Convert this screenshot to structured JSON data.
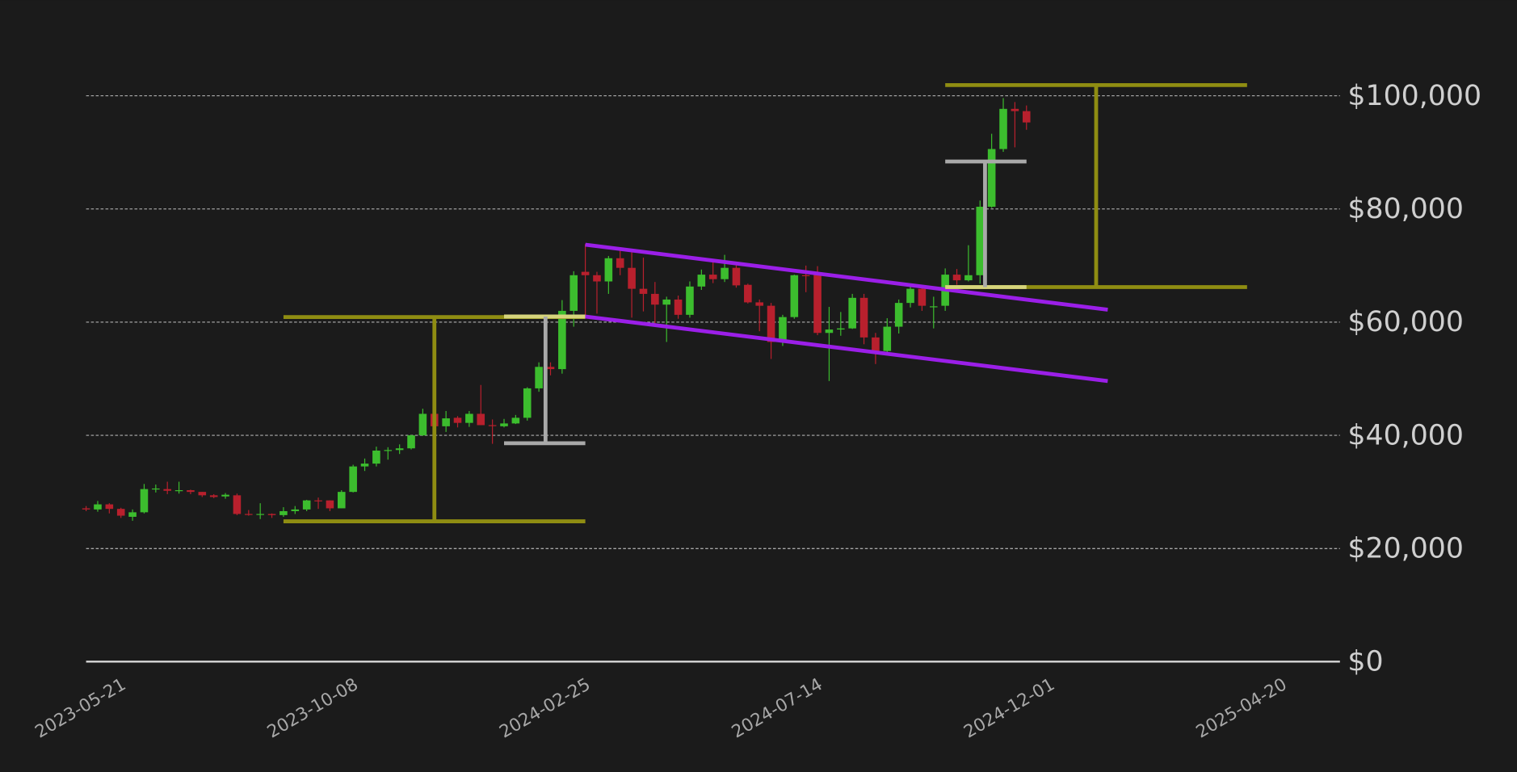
{
  "chart_data": {
    "type": "candlestick",
    "x": [
      "2023-04-30",
      "2023-05-07",
      "2023-05-14",
      "2023-05-21",
      "2023-05-28",
      "2023-06-04",
      "2023-06-11",
      "2023-06-18",
      "2023-06-25",
      "2023-07-02",
      "2023-07-09",
      "2023-07-16",
      "2023-07-23",
      "2023-07-30",
      "2023-08-06",
      "2023-08-13",
      "2023-08-20",
      "2023-08-27",
      "2023-09-03",
      "2023-09-10",
      "2023-09-17",
      "2023-09-24",
      "2023-10-01",
      "2023-10-08",
      "2023-10-15",
      "2023-10-22",
      "2023-10-29",
      "2023-11-05",
      "2023-11-12",
      "2023-11-19",
      "2023-11-26",
      "2023-12-03",
      "2023-12-10",
      "2023-12-17",
      "2023-12-24",
      "2023-12-31",
      "2024-01-07",
      "2024-01-14",
      "2024-01-21",
      "2024-01-28",
      "2024-02-04",
      "2024-02-11",
      "2024-02-18",
      "2024-02-25",
      "2024-03-03",
      "2024-03-10",
      "2024-03-17",
      "2024-03-24",
      "2024-03-31",
      "2024-04-07",
      "2024-04-14",
      "2024-04-21",
      "2024-04-28",
      "2024-05-05",
      "2024-05-12",
      "2024-05-19",
      "2024-05-26",
      "2024-06-02",
      "2024-06-09",
      "2024-06-16",
      "2024-06-23",
      "2024-06-30",
      "2024-07-07",
      "2024-07-14",
      "2024-07-21",
      "2024-07-28",
      "2024-08-04",
      "2024-08-11",
      "2024-08-18",
      "2024-08-25",
      "2024-09-01",
      "2024-09-08",
      "2024-09-15",
      "2024-09-22",
      "2024-09-29",
      "2024-10-06",
      "2024-10-13",
      "2024-10-20",
      "2024-10-27",
      "2024-11-03",
      "2024-11-10",
      "2024-11-17"
    ],
    "open": [
      27100,
      26900,
      27800,
      27000,
      25600,
      26400,
      30500,
      30500,
      30200,
      30300,
      30000,
      29400,
      29200,
      29400,
      26100,
      26000,
      26100,
      25900,
      26600,
      26900,
      28500,
      28500,
      27100,
      30000,
      34500,
      35000,
      37300,
      37400,
      37700,
      40000,
      43800,
      41600,
      43100,
      42200,
      43800,
      41800,
      41600,
      42100,
      43100,
      48300,
      52100,
      51700,
      62000,
      68900,
      68300,
      67200,
      71300,
      69600,
      65900,
      65000,
      63100,
      64000,
      61300,
      66300,
      68400,
      67600,
      69600,
      66600,
      63500,
      62900,
      56500,
      60900,
      68300,
      68800,
      58100,
      58700,
      58900,
      64300,
      57300,
      54900,
      59200,
      63400,
      65900,
      62800,
      62900,
      68400,
      67400,
      68300,
      80400,
      90600,
      97700,
      97300
    ],
    "high": [
      27500,
      28400,
      28000,
      27200,
      26900,
      31400,
      31300,
      31800,
      31800,
      30400,
      30000,
      29600,
      29800,
      29700,
      26800,
      28000,
      26200,
      27300,
      27500,
      28600,
      29000,
      28500,
      30300,
      34800,
      35900,
      38000,
      37900,
      38400,
      40100,
      44700,
      45000,
      44300,
      43400,
      44300,
      48900,
      42800,
      42900,
      43600,
      48500,
      52900,
      52900,
      63900,
      69000,
      73800,
      68900,
      71700,
      72700,
      72700,
      71400,
      67100,
      64500,
      64700,
      67200,
      69300,
      71000,
      71900,
      70300,
      66800,
      64000,
      63400,
      61300,
      68400,
      70000,
      69900,
      62700,
      61800,
      65000,
      65000,
      58100,
      60700,
      64000,
      66400,
      66400,
      64500,
      69500,
      69400,
      73600,
      81500,
      93300,
      99600,
      98900,
      98300
    ],
    "low": [
      26600,
      26500,
      26200,
      25400,
      24900,
      26200,
      29900,
      29600,
      29700,
      29600,
      29100,
      28900,
      28800,
      25900,
      25800,
      25200,
      25400,
      25600,
      26100,
      26600,
      27000,
      26600,
      27100,
      29900,
      33700,
      34500,
      35700,
      36700,
      37500,
      39900,
      40500,
      40600,
      41400,
      41500,
      41800,
      38500,
      41400,
      42000,
      42600,
      47700,
      50600,
      50900,
      59200,
      60800,
      61500,
      65000,
      68300,
      60800,
      61900,
      59700,
      56500,
      60600,
      60800,
      65700,
      66900,
      67100,
      66100,
      63300,
      58400,
      53500,
      55800,
      60600,
      65300,
      57700,
      49600,
      57600,
      58800,
      56100,
      52600,
      54700,
      58000,
      62600,
      62000,
      58900,
      62000,
      66600,
      67200,
      66800,
      80200,
      90100,
      90900,
      94000
    ],
    "close": [
      26900,
      27800,
      27000,
      25800,
      26400,
      30500,
      30600,
      30200,
      30300,
      30000,
      29400,
      29100,
      29500,
      26100,
      26000,
      26100,
      25900,
      26600,
      26900,
      28500,
      28400,
      27100,
      30000,
      34500,
      35000,
      37300,
      37400,
      37700,
      40000,
      43800,
      41600,
      43000,
      42200,
      43800,
      41800,
      41700,
      42100,
      43100,
      48300,
      52100,
      51700,
      62000,
      68300,
      68300,
      67200,
      71300,
      69600,
      65900,
      65000,
      63100,
      64000,
      61300,
      66300,
      68400,
      67600,
      69600,
      66500,
      63500,
      62900,
      56500,
      60900,
      68300,
      68200,
      58100,
      58700,
      58900,
      64300,
      57300,
      54800,
      59200,
      63400,
      65900,
      62900,
      62800,
      68400,
      67400,
      68300,
      80400,
      90600,
      97700,
      97300,
      95300
    ],
    "up_color": "#3cbd2e",
    "down_color": "#b8202d",
    "xlim": [
      "2023-04-30",
      "2025-05-25"
    ],
    "xticks": [
      "2023-05-21",
      "2023-10-08",
      "2024-02-25",
      "2024-07-14",
      "2024-12-01",
      "2025-04-20"
    ],
    "ylim": [
      0,
      100000
    ],
    "yticks": [
      {
        "value": 0,
        "label": "$0"
      },
      {
        "value": 20000,
        "label": "$20,000"
      },
      {
        "value": 40000,
        "label": "$40,000"
      },
      {
        "value": 60000,
        "label": "$60,000"
      },
      {
        "value": 80000,
        "label": "$80,000"
      },
      {
        "value": 100000,
        "label": "$100,000"
      }
    ],
    "grid": true,
    "annotations": [
      {
        "color": "#8f8d12",
        "points": [
          [
            "2023-08-27",
            60900
          ],
          [
            "2024-02-25",
            60900
          ]
        ]
      },
      {
        "color": "#8f8d12",
        "points": [
          [
            "2023-08-27",
            24800
          ],
          [
            "2024-02-25",
            24800
          ]
        ]
      },
      {
        "color": "#8f8d12",
        "points": [
          [
            "2023-11-26",
            60900
          ],
          [
            "2023-11-26",
            24800
          ]
        ]
      },
      {
        "color": "#d6d47c",
        "points": [
          [
            "2024-01-07",
            61000
          ],
          [
            "2024-02-25",
            61000
          ]
        ]
      },
      {
        "color": "#a9a9a9",
        "points": [
          [
            "2024-01-07",
            38600
          ],
          [
            "2024-02-25",
            38600
          ]
        ]
      },
      {
        "color": "#a9a9a9",
        "points": [
          [
            "2024-02-01",
            38600
          ],
          [
            "2024-02-01",
            61000
          ]
        ]
      },
      {
        "color": "#9b1fe8",
        "points": [
          [
            "2024-02-25",
            73700
          ],
          [
            "2025-01-05",
            62200
          ]
        ]
      },
      {
        "color": "#9b1fe8",
        "points": [
          [
            "2024-02-25",
            61000
          ],
          [
            "2025-01-05",
            49600
          ]
        ]
      },
      {
        "color": "#8f8d12",
        "points": [
          [
            "2024-09-29",
            101900
          ],
          [
            "2025-03-30",
            101900
          ]
        ]
      },
      {
        "color": "#8f8d12",
        "points": [
          [
            "2024-09-29",
            66200
          ],
          [
            "2025-03-30",
            66200
          ]
        ]
      },
      {
        "color": "#8f8d12",
        "points": [
          [
            "2024-12-29",
            101900
          ],
          [
            "2024-12-29",
            66200
          ]
        ]
      },
      {
        "color": "#d6d47c",
        "points": [
          [
            "2024-09-29",
            66200
          ],
          [
            "2024-11-17",
            66200
          ]
        ]
      },
      {
        "color": "#a9a9a9",
        "points": [
          [
            "2024-09-29",
            88400
          ],
          [
            "2024-11-17",
            88400
          ]
        ]
      },
      {
        "color": "#a9a9a9",
        "points": [
          [
            "2024-10-23",
            88400
          ],
          [
            "2024-10-23",
            66200
          ]
        ]
      }
    ]
  }
}
